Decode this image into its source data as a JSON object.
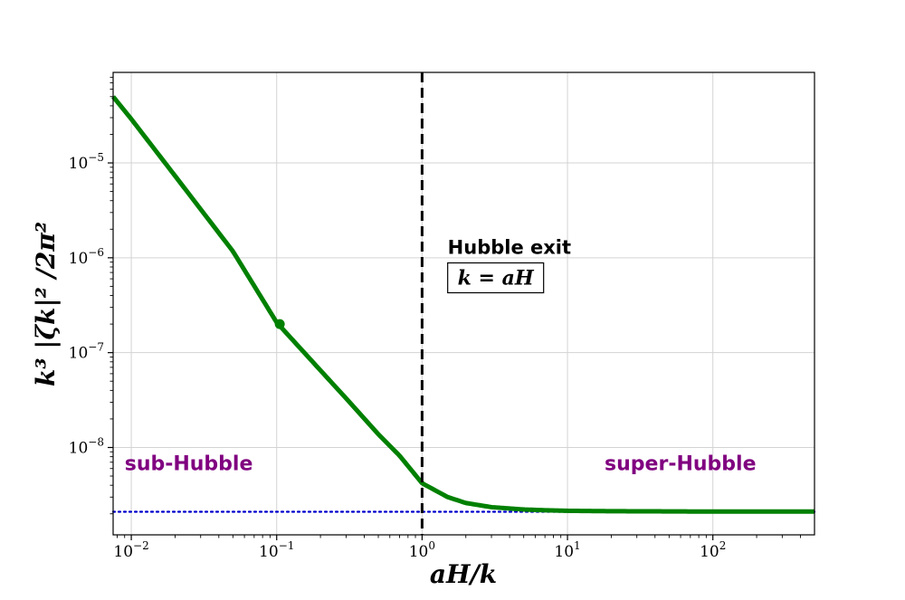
{
  "chart_data": {
    "type": "line",
    "xlabel": "aH/k",
    "ylabel": "k³ |ζk|² /2π²",
    "x_scale": "log",
    "y_scale": "log",
    "xlim": [
      0.0075,
      500
    ],
    "ylim": [
      1.2e-09,
      9e-05
    ],
    "grid": true,
    "x_ticks": [
      {
        "value": 0.01,
        "base": "10",
        "exp": "−2"
      },
      {
        "value": 0.1,
        "base": "10",
        "exp": "−1"
      },
      {
        "value": 1,
        "base": "10",
        "exp": "0"
      },
      {
        "value": 10,
        "base": "10",
        "exp": "1"
      },
      {
        "value": 100,
        "base": "10",
        "exp": "2"
      }
    ],
    "y_ticks": [
      {
        "value": 1e-08,
        "base": "10",
        "exp": "−8"
      },
      {
        "value": 1e-07,
        "base": "10",
        "exp": "−7"
      },
      {
        "value": 1e-06,
        "base": "10",
        "exp": "−6"
      },
      {
        "value": 1e-05,
        "base": "10",
        "exp": "−5"
      }
    ],
    "series": [
      {
        "color": "#008000",
        "style": "solid",
        "x": [
          0.0075,
          0.01,
          0.02,
          0.05,
          0.1,
          0.2,
          0.3,
          0.5,
          0.7,
          1,
          1.5,
          2,
          3,
          5,
          7,
          10,
          20,
          50,
          100,
          200,
          500
        ],
        "y": [
          5e-05,
          2.9e-05,
          7.3e-06,
          1.17e-06,
          2.08e-07,
          6.5e-08,
          3.3e-08,
          1.38e-08,
          8.2e-09,
          4.2e-09,
          3e-09,
          2.6e-09,
          2.35e-09,
          2.22e-09,
          2.18e-09,
          2.15e-09,
          2.13e-09,
          2.12e-09,
          2.11e-09,
          2.11e-09,
          2.11e-09
        ]
      },
      {
        "color": "#0000cc",
        "style": "dotted",
        "x": [
          0.0075,
          500
        ],
        "y": [
          2.1e-09,
          2.1e-09
        ]
      }
    ],
    "marker": {
      "x": 0.105,
      "y": 2e-07,
      "color": "#008000"
    },
    "vline": {
      "x": 1,
      "color": "#000000",
      "style": "dashed"
    },
    "annotations": {
      "hubble_exit": {
        "text": "Hubble exit",
        "formula": "k = aH",
        "x": 1.5,
        "y": 1.1e-06
      },
      "sub_hubble": {
        "text": "sub-Hubble",
        "x": 0.009,
        "y": 5.8e-09
      },
      "super_hubble": {
        "text": "super-Hubble",
        "x": 18,
        "y": 5.8e-09
      }
    }
  }
}
